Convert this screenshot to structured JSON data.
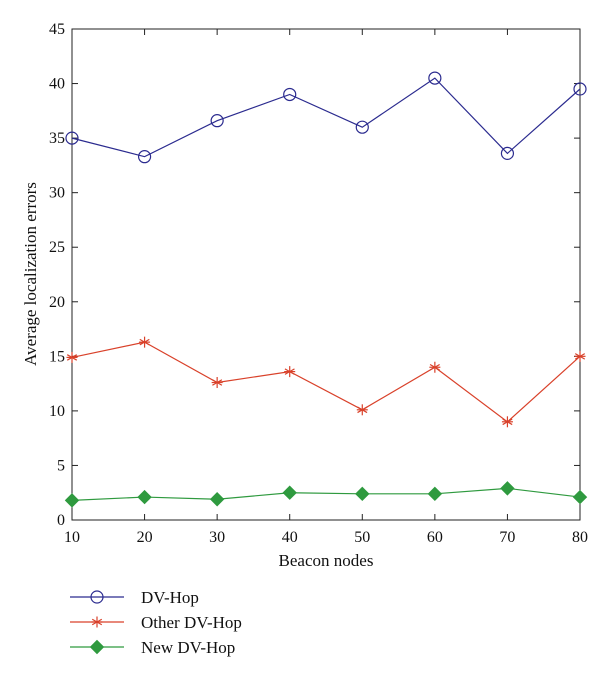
{
  "chart_data": {
    "type": "line",
    "title": "",
    "xlabel": "Beacon nodes",
    "ylabel": "Average localization errors",
    "x": [
      10,
      20,
      30,
      40,
      50,
      60,
      70,
      80
    ],
    "xlim": [
      10,
      80
    ],
    "ylim": [
      0,
      45
    ],
    "x_ticks": [
      10,
      20,
      30,
      40,
      50,
      60,
      70,
      80
    ],
    "y_ticks": [
      0,
      5,
      10,
      15,
      20,
      25,
      30,
      35,
      40,
      45
    ],
    "grid": false,
    "legend_position": "below the plot",
    "series": [
      {
        "name": "DV-Hop",
        "values": [
          35.0,
          33.3,
          36.6,
          39.0,
          36.0,
          40.5,
          33.6,
          39.5
        ],
        "color": "#2b2b8f",
        "marker": "circle"
      },
      {
        "name": "Other DV-Hop",
        "values": [
          14.9,
          16.3,
          12.6,
          13.6,
          10.1,
          14.0,
          9.0,
          15.0
        ],
        "color": "#d9412a",
        "marker": "asterisk"
      },
      {
        "name": "New DV-Hop",
        "values": [
          1.8,
          2.1,
          1.9,
          2.5,
          2.4,
          2.4,
          2.9,
          2.1
        ],
        "color": "#2f9a3f",
        "marker": "diamond"
      }
    ]
  }
}
